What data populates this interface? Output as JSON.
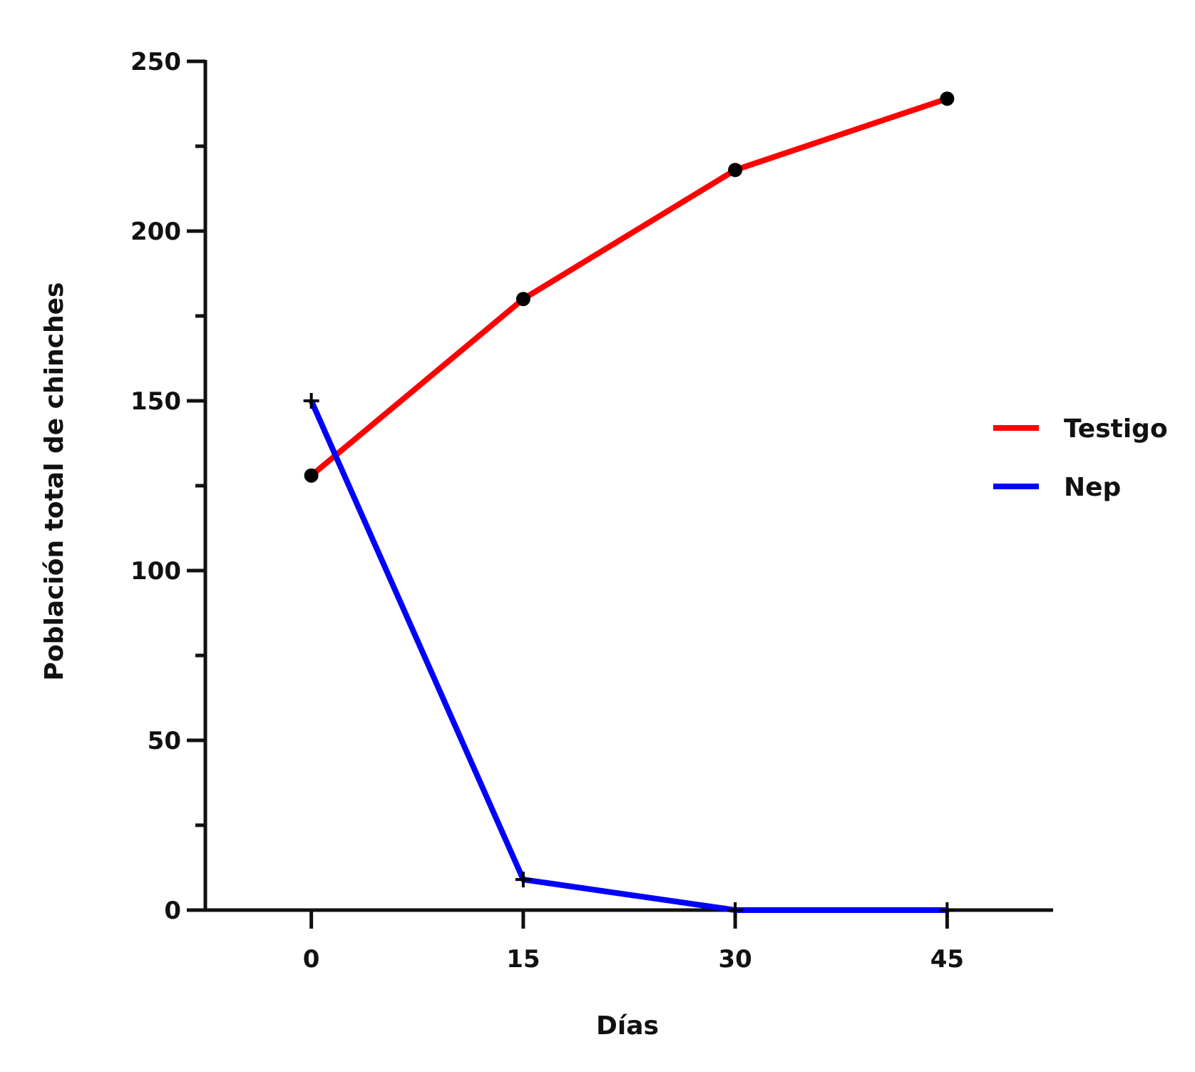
{
  "chart_data": {
    "type": "line",
    "xlabel": "Días",
    "ylabel": "Población total de chinches",
    "x": [
      0,
      15,
      30,
      45
    ],
    "x_tick_labels": [
      "0",
      "15",
      "30",
      "45"
    ],
    "ylim": [
      0,
      250
    ],
    "y_ticks": [
      0,
      50,
      100,
      150,
      200,
      250
    ],
    "y_tick_labels": [
      "0",
      "50",
      "100",
      "150",
      "200",
      "250"
    ],
    "y_minor_ticks": [
      25,
      75,
      125,
      175,
      225
    ],
    "xlim": [
      -7.5,
      52.5
    ],
    "grid": false,
    "legend_position": "right",
    "series": [
      {
        "name": "Testigo",
        "color": "#ff0000",
        "marker": "circle",
        "values": [
          128,
          180,
          218,
          239
        ]
      },
      {
        "name": "Nep",
        "color": "#0000ff",
        "marker": "plus",
        "values": [
          150,
          9,
          0,
          0
        ]
      }
    ]
  }
}
